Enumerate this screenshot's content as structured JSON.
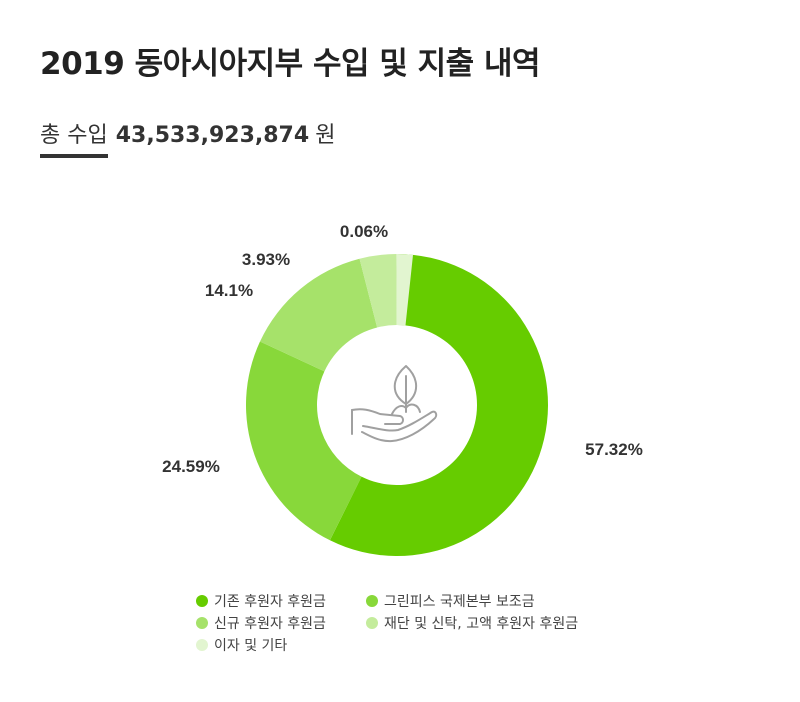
{
  "header": {
    "title": "2019 동아시아지부 수입 및 지출 내역",
    "total_label": "총 수입",
    "total_amount": "43,533,923,874",
    "total_unit": "원"
  },
  "center_icon": "hand-holding-sprout-icon",
  "colors": {
    "existing_donor": "#66cc00",
    "gpi_grant": "#88d83a",
    "new_donor": "#a6e26a",
    "foundation": "#c4ec9c",
    "other": "#e2f5d0"
  },
  "chart_data": {
    "type": "donut",
    "categories": [
      "기존 후원자 후원금",
      "그린피스 국제본부 보조금",
      "신규 후원자 후원금",
      "재단 및 신탁, 고액 후원자 후원금",
      "이자 및 기타"
    ],
    "values": [
      57.32,
      24.59,
      14.1,
      3.93,
      0.06
    ],
    "value_labels": [
      "57.32%",
      "24.59%",
      "14.1%",
      "3.93%",
      "0.06%"
    ],
    "colors": [
      "#66cc00",
      "#88d83a",
      "#a6e26a",
      "#c4ec9c",
      "#e2f5d0"
    ],
    "legend_position": "bottom"
  }
}
